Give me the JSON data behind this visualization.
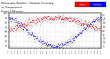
{
  "title_line1": "Milwaukee Weather  Outdoor Humidity",
  "title_line2": "vs Temperature",
  "title_line3": "Every 5 Minutes",
  "title_fontsize": 2.8,
  "background_color": "#ffffff",
  "plot_bg": "#ffffff",
  "grid_color": "#dddddd",
  "blue_color": "#0000ff",
  "red_color": "#ff0000",
  "legend_red_label": "Temp",
  "legend_blue_label": "Humidity",
  "left_ylim": [
    25,
    100
  ],
  "right_ylim": [
    -5,
    85
  ],
  "left_yticks": [
    30,
    40,
    50,
    60,
    70,
    80,
    90,
    100
  ],
  "right_yticks": [
    0,
    10,
    20,
    30,
    40,
    50,
    60,
    70,
    80
  ],
  "num_points": 288,
  "seed": 7
}
